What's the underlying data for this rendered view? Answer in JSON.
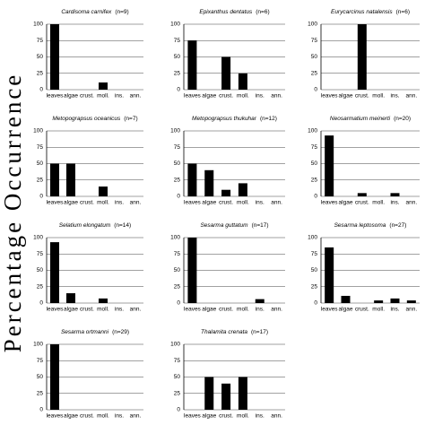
{
  "ylabel": "Percentage Occurrence",
  "chart_data": [
    {
      "type": "bar",
      "title": "Cardisoma carnifex",
      "subtitle": "(n=9)",
      "categories": [
        "leaves",
        "algae",
        "crust.",
        "moll.",
        "ins.",
        "ann."
      ],
      "values": [
        100,
        0,
        0,
        11,
        0,
        0
      ],
      "color": "#000000",
      "ylim": [
        0,
        100
      ],
      "yticks": [
        0,
        25,
        50,
        75,
        100
      ],
      "grid": true
    },
    {
      "type": "bar",
      "title": "Epixanthus dentatus",
      "subtitle": "(n=6)",
      "categories": [
        "leaves",
        "algae",
        "crust.",
        "moll.",
        "ins.",
        "ann."
      ],
      "values": [
        75,
        0,
        50,
        25,
        0,
        0
      ],
      "color": "#000000",
      "ylim": [
        0,
        100
      ],
      "yticks": [
        0,
        25,
        50,
        75,
        100
      ],
      "grid": true
    },
    {
      "type": "bar",
      "title": "Eurycarcinus natalensis",
      "subtitle": "(n=6)",
      "categories": [
        "leaves",
        "algae",
        "crust.",
        "moll.",
        "ins.",
        "ann."
      ],
      "values": [
        0,
        0,
        100,
        0,
        0,
        0
      ],
      "color": "#000000",
      "ylim": [
        0,
        100
      ],
      "yticks": [
        0,
        25,
        50,
        75,
        100
      ],
      "grid": true
    },
    {
      "type": "bar",
      "title": "Metopograpsus oceanicus",
      "subtitle": "(n=7)",
      "categories": [
        "leaves",
        "algae",
        "crust.",
        "moll.",
        "ins.",
        "ann."
      ],
      "values": [
        50,
        50,
        0,
        15,
        0,
        0
      ],
      "color": "#000000",
      "ylim": [
        0,
        100
      ],
      "yticks": [
        0,
        25,
        50,
        75,
        100
      ],
      "grid": true
    },
    {
      "type": "bar",
      "title": "Metopograpsus thukuhar",
      "subtitle": "(n=12)",
      "categories": [
        "leaves",
        "algae",
        "crust.",
        "moll.",
        "ins.",
        "ann."
      ],
      "values": [
        50,
        40,
        10,
        20,
        0,
        0
      ],
      "color": "#000000",
      "ylim": [
        0,
        100
      ],
      "yticks": [
        0,
        25,
        50,
        75,
        100
      ],
      "grid": true
    },
    {
      "type": "bar",
      "title": "Neosarmatium meinerti",
      "subtitle": "(n=20)",
      "categories": [
        "leaves",
        "algae",
        "crust.",
        "moll.",
        "ins.",
        "ann."
      ],
      "values": [
        93,
        0,
        5,
        0,
        5,
        0
      ],
      "color": "#000000",
      "ylim": [
        0,
        100
      ],
      "yticks": [
        0,
        25,
        50,
        75,
        100
      ],
      "grid": true
    },
    {
      "type": "bar",
      "title": "Selatium elongatum",
      "subtitle": "(n=14)",
      "categories": [
        "leaves",
        "algae",
        "crust.",
        "moll.",
        "ins.",
        "ann."
      ],
      "values": [
        93,
        15,
        0,
        7,
        0,
        0
      ],
      "color": "#000000",
      "ylim": [
        0,
        100
      ],
      "yticks": [
        0,
        25,
        50,
        75,
        100
      ],
      "grid": true
    },
    {
      "type": "bar",
      "title": "Sesarma guttatum",
      "subtitle": "(n=17)",
      "categories": [
        "leaves",
        "algae",
        "crust.",
        "moll.",
        "ins.",
        "ann."
      ],
      "values": [
        100,
        0,
        0,
        0,
        6,
        0
      ],
      "color": "#000000",
      "ylim": [
        0,
        100
      ],
      "yticks": [
        0,
        25,
        50,
        75,
        100
      ],
      "grid": true
    },
    {
      "type": "bar",
      "title": "Sesarma leptosoma",
      "subtitle": "(n=27)",
      "categories": [
        "leaves",
        "algae",
        "crust.",
        "moll.",
        "ins.",
        "ann."
      ],
      "values": [
        85,
        11,
        0,
        4,
        7,
        4
      ],
      "color": "#000000",
      "ylim": [
        0,
        100
      ],
      "yticks": [
        0,
        25,
        50,
        75,
        100
      ],
      "grid": true
    },
    {
      "type": "bar",
      "title": "Sesarma ortmanni",
      "subtitle": "(n=29)",
      "categories": [
        "leaves",
        "algae",
        "crust.",
        "moll.",
        "ins.",
        "ann."
      ],
      "values": [
        100,
        0,
        0,
        0,
        0,
        0
      ],
      "color": "#000000",
      "ylim": [
        0,
        100
      ],
      "yticks": [
        0,
        25,
        50,
        75,
        100
      ],
      "grid": true
    },
    {
      "type": "bar",
      "title": "Thalamita crenata",
      "subtitle": "(n=17)",
      "categories": [
        "leaves",
        "algae",
        "crust.",
        "moll.",
        "ins.",
        "ann."
      ],
      "values": [
        0,
        50,
        40,
        50,
        0,
        0
      ],
      "color": "#000000",
      "ylim": [
        0,
        100
      ],
      "yticks": [
        0,
        25,
        50,
        75,
        100
      ],
      "grid": true
    }
  ]
}
